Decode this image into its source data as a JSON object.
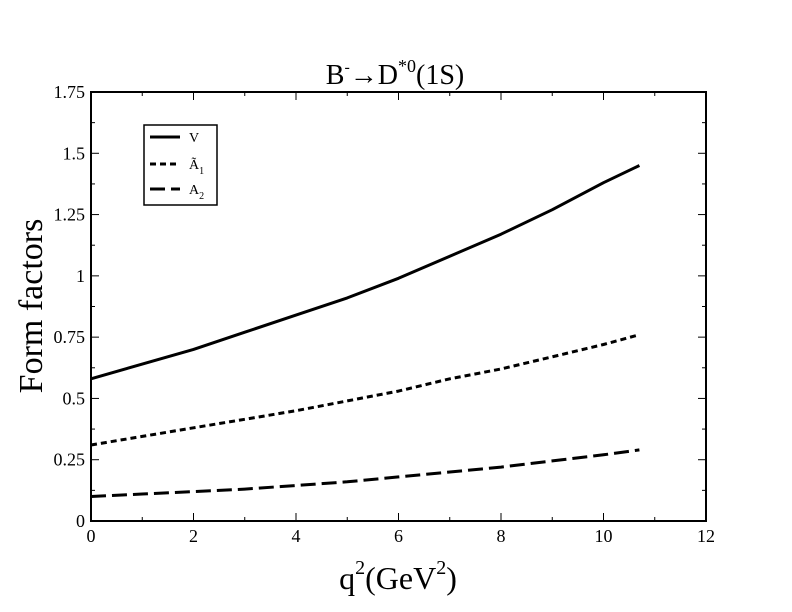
{
  "chart_data": {
    "type": "line",
    "title": {
      "base": "B",
      "base_sup": "-",
      "arrow": "→",
      "target": "D",
      "target_sup": "*0",
      "tail": "(1S)"
    },
    "xlabel": {
      "main": "q",
      "main_sup": "2",
      "unit_open": "(GeV",
      "unit_sup": "2",
      "unit_close": ")"
    },
    "ylabel": "Form factors",
    "xlim": [
      0,
      12
    ],
    "ylim": [
      0,
      1.75
    ],
    "x_ticks": [
      "0",
      "2",
      "4",
      "6",
      "8",
      "10",
      "12"
    ],
    "y_ticks": [
      "0",
      "0.25",
      "0.5",
      "0.75",
      "1",
      "1.25",
      "1.5",
      "1.75"
    ],
    "legend": {
      "placement": "top-left",
      "entries": [
        {
          "label": "V",
          "sub": ""
        },
        {
          "label": "Ã",
          "sub": "1"
        },
        {
          "label": "A",
          "sub": "2"
        }
      ]
    },
    "x": [
      0,
      1,
      2,
      3,
      4,
      5,
      6,
      7,
      8,
      9,
      10,
      10.7
    ],
    "series": [
      {
        "values": [
          0.58,
          0.64,
          0.7,
          0.77,
          0.84,
          0.91,
          0.99,
          1.08,
          1.17,
          1.27,
          1.38,
          1.45
        ],
        "dash": "solid"
      },
      {
        "values": [
          0.31,
          0.345,
          0.38,
          0.415,
          0.45,
          0.49,
          0.53,
          0.58,
          0.62,
          0.67,
          0.72,
          0.76
        ],
        "dash": "short"
      },
      {
        "values": [
          0.1,
          0.11,
          0.12,
          0.13,
          0.145,
          0.16,
          0.18,
          0.2,
          0.22,
          0.245,
          0.27,
          0.29
        ],
        "dash": "long"
      }
    ]
  }
}
